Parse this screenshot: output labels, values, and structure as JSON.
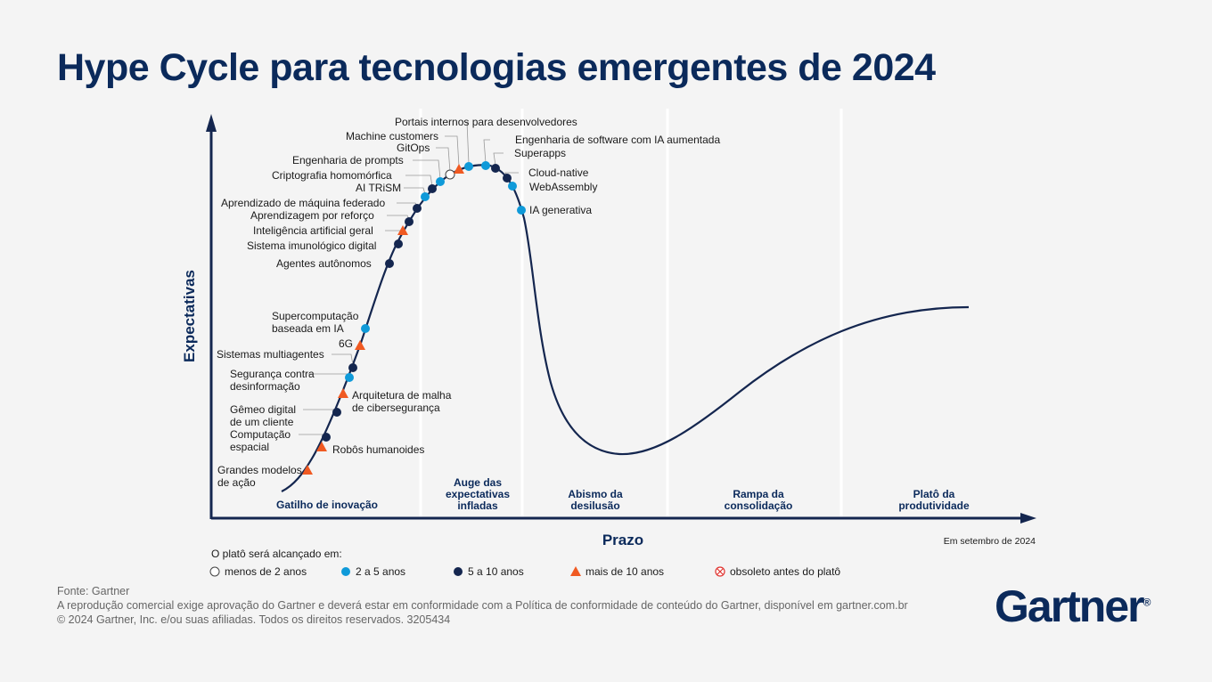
{
  "title": "Hype Cycle para tecnologias emergentes de 2024",
  "y_axis_label": "Expectativas",
  "x_axis_label": "Prazo",
  "as_of": "Em setembro de 2024",
  "phases": [
    "Gatilho de inovação",
    "Auge das\nexpectativas\ninfladas",
    "Abismo da\ndesilusão",
    "Rampa da\nconsolidação",
    "Platô da\nprodutividade"
  ],
  "legend": {
    "title": "O platô será alcançado em:",
    "items": [
      {
        "key": "lt2",
        "label": "menos de 2 anos"
      },
      {
        "key": "2to5",
        "label": "2 a 5 anos"
      },
      {
        "key": "5to10",
        "label": "5 a 10 anos"
      },
      {
        "key": "gt10",
        "label": "mais de 10 anos"
      },
      {
        "key": "obsolete",
        "label": "obsoleto antes do platô"
      }
    ]
  },
  "colors": {
    "navy": "#14264f",
    "light_blue": "#0f9ad9",
    "orange": "#f05a22",
    "title": "#0b2a5b",
    "obsolete": "#e0332f"
  },
  "technologies": [
    {
      "name": "Grandes modelos\nde ação",
      "status": "gt10"
    },
    {
      "name": "Robôs humanoides",
      "status": "gt10"
    },
    {
      "name": "Computação\nespacial",
      "status": "5to10"
    },
    {
      "name": "Gêmeo digital\nde um cliente",
      "status": "5to10"
    },
    {
      "name": "Arquitetura de malha\nde cibersegurança",
      "status": "gt10"
    },
    {
      "name": "Segurança contra\ndesinformação",
      "status": "2to5"
    },
    {
      "name": "Sistemas multiagentes",
      "status": "5to10"
    },
    {
      "name": "6G",
      "status": "gt10"
    },
    {
      "name": "Supercomputação\nbaseada em IA",
      "status": "2to5"
    },
    {
      "name": "Agentes autônomos",
      "status": "5to10"
    },
    {
      "name": "Sistema imunológico digital",
      "status": "5to10"
    },
    {
      "name": "Inteligência artificial geral",
      "status": "gt10"
    },
    {
      "name": "Aprendizagem por reforço",
      "status": "5to10"
    },
    {
      "name": "Aprendizado de máquina federado",
      "status": "5to10"
    },
    {
      "name": "AI TRiSM",
      "status": "2to5"
    },
    {
      "name": "Criptografia homomórfica",
      "status": "5to10"
    },
    {
      "name": "Engenharia de prompts",
      "status": "2to5"
    },
    {
      "name": "GitOps",
      "status": "lt2"
    },
    {
      "name": "Machine customers",
      "status": "gt10"
    },
    {
      "name": "Portais internos para desenvolvedores",
      "status": "2to5"
    },
    {
      "name": "Engenharia de software com IA aumentada",
      "status": "2to5"
    },
    {
      "name": "Superapps",
      "status": "5to10"
    },
    {
      "name": "Cloud-native",
      "status": "5to10"
    },
    {
      "name": "WebAssembly",
      "status": "2to5"
    },
    {
      "name": "IA generativa",
      "status": "2to5"
    }
  ],
  "footer": {
    "source": "Fonte: Gartner",
    "notice": "A reprodução comercial exige aprovação do Gartner e deverá estar em conformidade com a Política de conformidade de conteúdo do Gartner, disponível em gartner.com.br",
    "copyright": "© 2024 Gartner, Inc. e/ou suas afiliadas. Todos os direitos reservados. 3205434"
  },
  "logo": "Gartner"
}
